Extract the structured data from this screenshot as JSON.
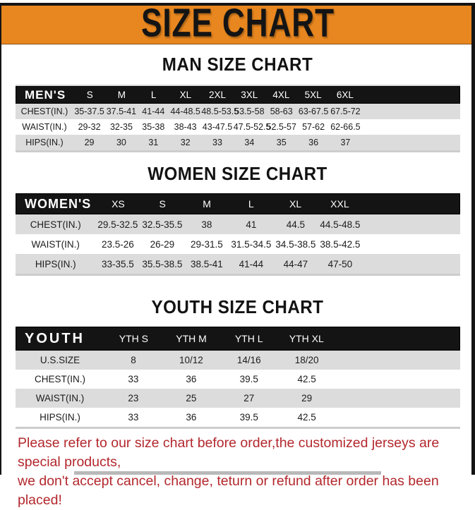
{
  "colors": {
    "accent_orange": "#E8861F",
    "bar_black": "#141414",
    "row_gray": "#DCDCDC",
    "footer_red": "#B3282D"
  },
  "title": "SIZE CHART",
  "sections": [
    {
      "id": "men",
      "heading": "MAN SIZE CHART",
      "label": "MEN'S",
      "columns": [
        "S",
        "M",
        "L",
        "XL",
        "2XL",
        "3XL",
        "4XL",
        "5XL",
        "6XL"
      ],
      "rows": [
        {
          "label": "CHEST(IN.)",
          "values": [
            "35-37.5",
            "37.5-41",
            "41-44",
            "44-48.5",
            "48.5-53.5",
            "53.5-58",
            "58-63",
            "63-67.5",
            "67.5-72"
          ]
        },
        {
          "label": "WAIST(IN.)",
          "values": [
            "29-32",
            "32-35",
            "35-38",
            "38-43",
            "43-47.5",
            "47.5-52.5",
            "52.5-57",
            "57-62",
            "62-66.5"
          ]
        },
        {
          "label": "HIPS(IN.)",
          "values": [
            "29",
            "30",
            "31",
            "32",
            "33",
            "34",
            "35",
            "36",
            "37"
          ]
        }
      ]
    },
    {
      "id": "women",
      "heading": "WOMEN SIZE CHART",
      "label": "WOMEN'S",
      "columns": [
        "XS",
        "S",
        "M",
        "L",
        "XL",
        "XXL"
      ],
      "rows": [
        {
          "label": "CHEST(IN.)",
          "values": [
            "29.5-32.5",
            "32.5-35.5",
            "38",
            "41",
            "44.5",
            "44.5-48.5"
          ]
        },
        {
          "label": "WAIST(IN.)",
          "values": [
            "23.5-26",
            "26-29",
            "29-31.5",
            "31.5-34.5",
            "34.5-38.5",
            "38.5-42.5"
          ]
        },
        {
          "label": "HIPS(IN.)",
          "values": [
            "33-35.5",
            "35.5-38.5",
            "38.5-41",
            "41-44",
            "44-47",
            "47-50"
          ]
        }
      ]
    },
    {
      "id": "youth",
      "heading": "YOUTH SIZE CHART",
      "label": "YOUTH",
      "columns": [
        "YTH S",
        "YTH M",
        "YTH L",
        "YTH XL"
      ],
      "rows": [
        {
          "label": "U.S.SIZE",
          "values": [
            "8",
            "10/12",
            "14/16",
            "18/20"
          ]
        },
        {
          "label": "CHEST(IN.)",
          "values": [
            "33",
            "36",
            "39.5",
            "42.5"
          ]
        },
        {
          "label": "WAIST(IN.)",
          "values": [
            "23",
            "25",
            "27",
            "29"
          ]
        },
        {
          "label": "HIPS(IN.)",
          "values": [
            "33",
            "36",
            "39.5",
            "42.5"
          ]
        }
      ]
    }
  ],
  "footer": {
    "line1": "Please refer to our size chart before order,the customized jerseys are special products,",
    "line2": "we don't accept cancel, change, teturn or refund after order has been placed!"
  }
}
